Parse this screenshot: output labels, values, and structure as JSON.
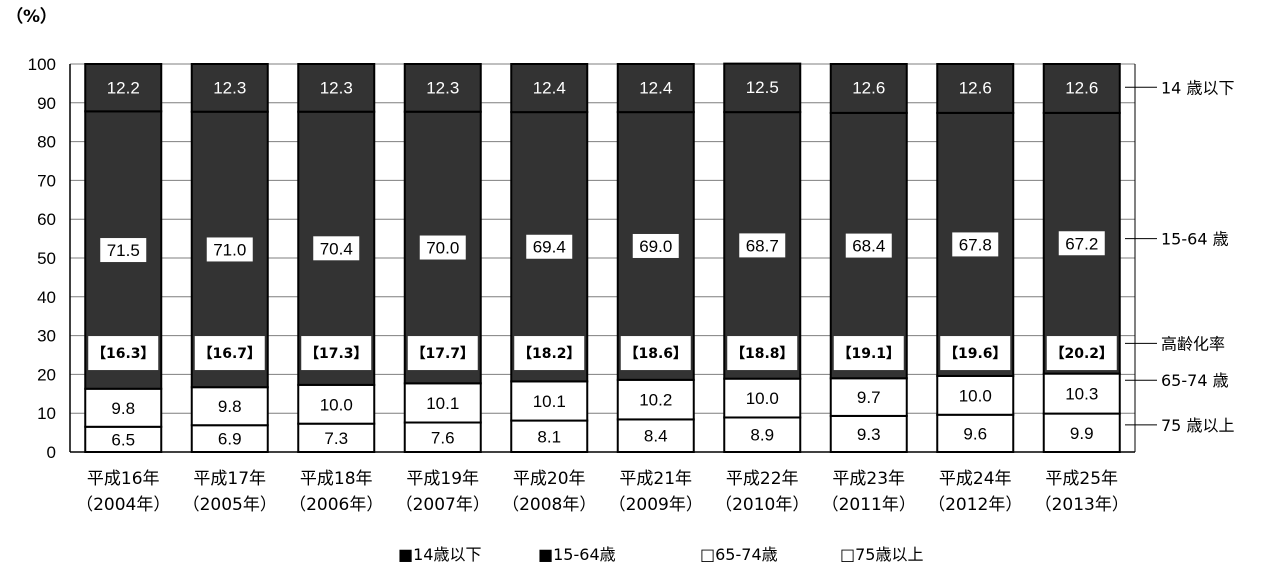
{
  "chart_data": {
    "type": "bar",
    "stacked": true,
    "unit_label": "（%）",
    "ylim": [
      0,
      100
    ],
    "yticks": [
      0,
      10,
      20,
      30,
      40,
      50,
      60,
      70,
      80,
      90,
      100
    ],
    "grid": true,
    "categories": [
      [
        "平成16年",
        "（2004年）"
      ],
      [
        "平成17年",
        "（2005年）"
      ],
      [
        "平成18年",
        "（2006年）"
      ],
      [
        "平成19年",
        "（2007年）"
      ],
      [
        "平成20年",
        "（2008年）"
      ],
      [
        "平成21年",
        "（2009年）"
      ],
      [
        "平成22年",
        "（2010年）"
      ],
      [
        "平成23年",
        "（2011年）"
      ],
      [
        "平成24年",
        "（2012年）"
      ],
      [
        "平成25年",
        "（2013年）"
      ]
    ],
    "series": [
      {
        "name": "75歳以上",
        "fill": "#ffffff",
        "values": [
          6.5,
          6.9,
          7.3,
          7.6,
          8.1,
          8.4,
          8.9,
          9.3,
          9.6,
          9.9
        ]
      },
      {
        "name": "65-74歳",
        "fill": "#ffffff",
        "values": [
          9.8,
          9.8,
          10.0,
          10.1,
          10.1,
          10.2,
          10.0,
          9.7,
          10.0,
          10.3
        ]
      },
      {
        "name": "15-64歳",
        "fill": "#333333",
        "values": [
          71.5,
          71.0,
          70.4,
          70.0,
          69.4,
          69.0,
          68.7,
          68.4,
          67.8,
          67.2
        ]
      },
      {
        "name": "14歳以下",
        "fill": "#333333",
        "values": [
          12.2,
          12.3,
          12.3,
          12.3,
          12.4,
          12.4,
          12.5,
          12.6,
          12.6,
          12.6
        ]
      }
    ],
    "aging_rate": {
      "values": [
        "16.3",
        "16.7",
        "17.3",
        "17.7",
        "18.2",
        "18.6",
        "18.8",
        "19.1",
        "19.6",
        "20.2"
      ],
      "open": "【",
      "close": "】"
    },
    "right_labels": [
      {
        "text": "14 歳以下",
        "y": 94
      },
      {
        "text": "15-64 歳",
        "y": 55
      },
      {
        "text": "高齢化率",
        "y": 28
      },
      {
        "text": "65-74 歳",
        "y": 18.5
      },
      {
        "text": "75 歳以上",
        "y": 7
      }
    ],
    "legend": {
      "position": "bottom",
      "items": [
        {
          "symbol": "■",
          "label": "14歳以下"
        },
        {
          "symbol": "■",
          "label": "15-64歳"
        },
        {
          "symbol": "□",
          "label": "65-74歳"
        },
        {
          "symbol": "□",
          "label": "75歳以上"
        }
      ]
    }
  }
}
